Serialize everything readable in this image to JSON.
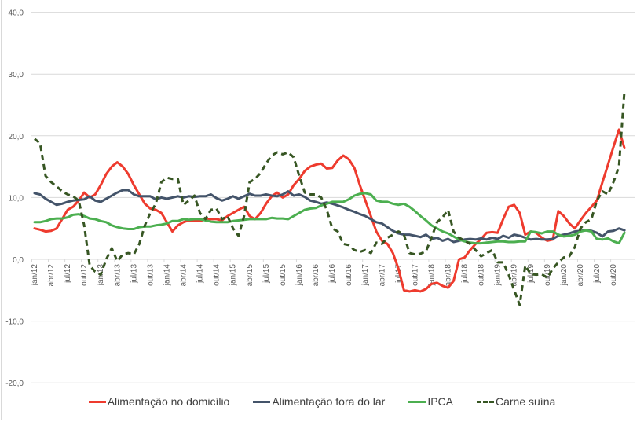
{
  "chart_data": {
    "type": "line",
    "title": "",
    "xlabel": "",
    "ylabel": "",
    "ylim": [
      -20,
      40
    ],
    "y_ticks": [
      40,
      30,
      20,
      10,
      0,
      -10,
      -20
    ],
    "y_tick_labels": [
      "40,0",
      "30,0",
      "20,0",
      "10,0",
      "0,0",
      "-10,0",
      "-20,0"
    ],
    "grid": true,
    "legend_position": "bottom",
    "x_start": "jan/12",
    "x_end": "dez/20",
    "x_tick_labels": [
      "jan/12",
      "abr/12",
      "jul/12",
      "out/12",
      "jan/13",
      "abr/13",
      "jul/13",
      "out/13",
      "jan/14",
      "abr/14",
      "jul/14",
      "out/14",
      "jan/15",
      "abr/15",
      "jul/15",
      "out/15",
      "jan/16",
      "abr/16",
      "jul/16",
      "out/16",
      "jan/17",
      "abr/17",
      "jul/17",
      "out/17",
      "jan/18",
      "abr/18",
      "jul/18",
      "out/18",
      "jan/19",
      "abr/19",
      "jul/19",
      "out/19",
      "jan/20",
      "abr/20",
      "jul/20",
      "out/20"
    ],
    "series": [
      {
        "name": "Alimentação no domicílio",
        "color": "#ee3b2e",
        "style": "solid",
        "values": [
          5.0,
          4.8,
          4.5,
          4.6,
          5.0,
          6.5,
          8.0,
          8.5,
          9.5,
          10.8,
          10.0,
          10.5,
          12.0,
          13.8,
          15.0,
          15.7,
          15.0,
          13.8,
          12.0,
          10.5,
          9.0,
          8.2,
          8.0,
          7.5,
          6.0,
          4.5,
          5.5,
          6.0,
          6.3,
          6.3,
          6.2,
          6.5,
          6.5,
          6.5,
          6.3,
          7.0,
          7.5,
          8.0,
          8.5,
          7.0,
          6.5,
          7.5,
          9.0,
          10.2,
          10.8,
          10.0,
          10.5,
          12.0,
          13.0,
          14.3,
          15.0,
          15.3,
          15.5,
          14.7,
          14.8,
          16.0,
          16.8,
          16.2,
          14.8,
          12.0,
          9.5,
          7.0,
          4.5,
          3.0,
          2.5,
          1.0,
          -1.5,
          -5.0,
          -5.2,
          -5.0,
          -5.2,
          -4.8,
          -4.0,
          -3.8,
          -4.3,
          -4.6,
          -3.5,
          0.0,
          0.3,
          1.5,
          2.5,
          3.3,
          4.3,
          4.4,
          4.3,
          6.5,
          8.5,
          8.8,
          7.5,
          4.0,
          4.5,
          4.3,
          3.5,
          3.0,
          3.2,
          7.8,
          7.0,
          5.8,
          5.0,
          6.3,
          7.5,
          8.5,
          9.5,
          12.5,
          15.3,
          18.2,
          21.0,
          18.0
        ]
      },
      {
        "name": "Alimentação fora do lar",
        "color": "#44546a",
        "style": "solid",
        "values": [
          10.7,
          10.5,
          9.8,
          9.3,
          8.8,
          9.0,
          9.3,
          9.5,
          9.6,
          9.7,
          10.2,
          9.5,
          9.3,
          9.8,
          10.3,
          10.8,
          11.2,
          11.2,
          10.5,
          10.2,
          10.2,
          10.2,
          9.7,
          10.0,
          9.8,
          10.0,
          10.2,
          10.0,
          10.2,
          10.1,
          10.2,
          10.2,
          10.5,
          9.9,
          9.5,
          9.8,
          10.2,
          9.8,
          10.2,
          10.6,
          10.3,
          10.3,
          10.5,
          10.3,
          10.2,
          10.5,
          11.0,
          10.3,
          10.5,
          10.1,
          9.5,
          9.3,
          9.0,
          9.2,
          9.0,
          8.7,
          8.4,
          8.0,
          7.7,
          7.3,
          7.0,
          6.5,
          6.0,
          5.8,
          5.2,
          4.6,
          4.2,
          4.0,
          4.0,
          3.8,
          3.6,
          4.0,
          3.3,
          3.5,
          3.0,
          3.3,
          2.8,
          3.0,
          3.2,
          3.3,
          3.2,
          3.4,
          3.2,
          3.5,
          3.3,
          3.8,
          3.5,
          4.0,
          3.8,
          3.5,
          3.2,
          3.3,
          3.2,
          3.2,
          3.3,
          3.8,
          4.0,
          4.2,
          4.5,
          4.6,
          4.7,
          4.6,
          4.3,
          3.7,
          4.5,
          4.6,
          5.0,
          4.7
        ]
      },
      {
        "name": "IPCA",
        "color": "#4caf50",
        "style": "solid",
        "values": [
          6.0,
          6.0,
          6.2,
          6.5,
          6.6,
          6.6,
          6.8,
          7.2,
          7.3,
          7.0,
          6.6,
          6.5,
          6.2,
          6.0,
          5.5,
          5.2,
          5.0,
          4.9,
          4.9,
          5.2,
          5.3,
          5.3,
          5.5,
          5.6,
          5.8,
          6.2,
          6.2,
          6.5,
          6.4,
          6.5,
          6.5,
          6.3,
          6.1,
          6.0,
          6.0,
          6.0,
          6.2,
          6.3,
          6.4,
          6.5,
          6.5,
          6.5,
          6.5,
          6.7,
          6.6,
          6.6,
          6.5,
          7.0,
          7.5,
          8.0,
          8.2,
          8.3,
          8.7,
          9.0,
          9.3,
          9.3,
          9.3,
          9.7,
          10.3,
          10.6,
          10.7,
          10.5,
          9.5,
          9.3,
          9.3,
          9.0,
          8.8,
          9.0,
          8.5,
          7.8,
          7.0,
          6.3,
          5.5,
          5.0,
          4.5,
          4.2,
          3.7,
          3.2,
          2.9,
          2.7,
          2.6,
          2.6,
          2.7,
          2.8,
          2.9,
          2.9,
          2.8,
          2.8,
          2.9,
          2.9,
          4.5,
          4.4,
          4.2,
          4.5,
          4.5,
          4.0,
          3.7,
          3.8,
          4.0,
          4.5,
          4.7,
          4.5,
          3.3,
          3.2,
          3.4,
          2.9,
          2.6,
          4.3
        ]
      },
      {
        "name": "Carne suína",
        "color": "#375623",
        "style": "dashed",
        "values": [
          19.5,
          18.8,
          13.5,
          12.5,
          11.8,
          11.0,
          10.5,
          10.2,
          9.5,
          5.5,
          -1.0,
          -2.0,
          -2.5,
          0.0,
          1.8,
          -0.3,
          0.8,
          1.0,
          0.8,
          2.5,
          5.5,
          7.5,
          9.0,
          12.5,
          13.2,
          13.0,
          13.0,
          8.8,
          9.5,
          10.3,
          7.5,
          6.5,
          8.0,
          8.2,
          6.5,
          7.0,
          5.0,
          3.8,
          7.0,
          12.5,
          13.0,
          14.0,
          15.5,
          16.8,
          17.3,
          17.0,
          17.3,
          16.5,
          13.5,
          10.8,
          10.5,
          10.5,
          10.0,
          8.0,
          5.0,
          4.5,
          2.5,
          2.3,
          1.5,
          1.2,
          1.5,
          1.0,
          2.7,
          2.5,
          3.5,
          4.0,
          4.5,
          4.0,
          1.0,
          0.8,
          0.9,
          1.3,
          3.5,
          6.0,
          6.8,
          8.0,
          4.5,
          3.5,
          3.0,
          2.5,
          1.5,
          0.5,
          1.0,
          1.5,
          -0.5,
          -0.5,
          -2.5,
          -5.0,
          -7.4,
          -1.0,
          -2.4,
          -2.5,
          -2.4,
          -3.0,
          -1.5,
          -0.5,
          0.3,
          0.5,
          2.0,
          5.0,
          6.0,
          6.5,
          9.5,
          11.0,
          10.5,
          12.5,
          15.0,
          27.3
        ]
      }
    ]
  }
}
